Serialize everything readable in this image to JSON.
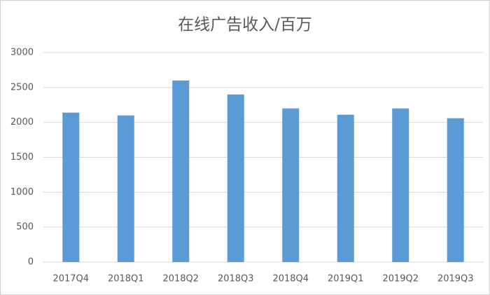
{
  "chart_data": {
    "type": "bar",
    "title": "在线广告收入/百万",
    "categories": [
      "2017Q4",
      "2018Q1",
      "2018Q2",
      "2018Q3",
      "2018Q4",
      "2019Q1",
      "2019Q2",
      "2019Q3"
    ],
    "values": [
      2140,
      2100,
      2600,
      2400,
      2200,
      2110,
      2200,
      2060
    ],
    "color": "#5b9bd5",
    "ylim": [
      0,
      3000
    ],
    "yticks": [
      0,
      500,
      1000,
      1500,
      2000,
      2500,
      3000
    ],
    "grid": true
  }
}
